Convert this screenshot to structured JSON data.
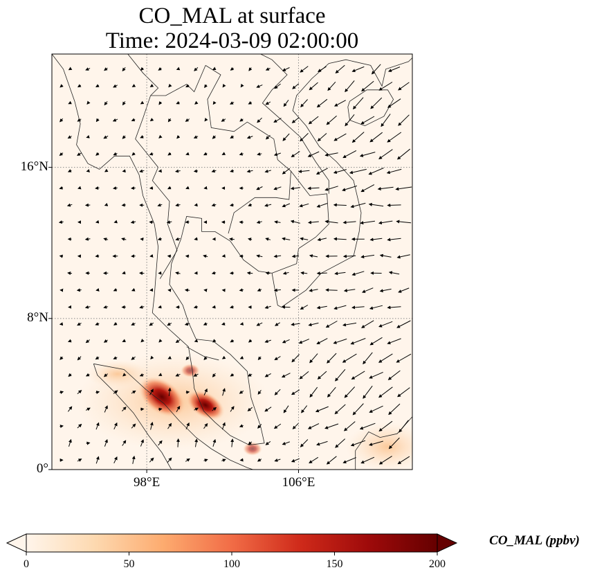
{
  "title": {
    "line1": "CO_MAL at surface",
    "line2": "Time: 2024-03-09 02:00:00"
  },
  "map": {
    "lat_range": [
      0,
      22
    ],
    "lon_range": [
      93,
      112
    ],
    "lat_ticks": [
      {
        "value": 16,
        "label": "16°N"
      },
      {
        "value": 8,
        "label": "8°N"
      },
      {
        "value": 0,
        "label": "0°"
      }
    ],
    "lon_ticks": [
      {
        "value": 98,
        "label": "98°E"
      },
      {
        "value": 106,
        "label": "106°E"
      }
    ],
    "gridlines": true,
    "vectors": "wind-arrows",
    "colors": {
      "background": "#fff5eb",
      "coast": "#222222",
      "grid": "#888888"
    }
  },
  "colorbar": {
    "label": "CO_MAL (ppbv)",
    "range": [
      0,
      200
    ],
    "extend": "both",
    "colormap": "Oranges-Reds",
    "ticks": [
      {
        "value": 0,
        "label": "0"
      },
      {
        "value": 50,
        "label": "50"
      },
      {
        "value": 100,
        "label": "100"
      },
      {
        "value": 150,
        "label": "150"
      },
      {
        "value": 200,
        "label": "200"
      }
    ],
    "stops": [
      "#fff5eb",
      "#fdd9b0",
      "#fdab6f",
      "#f16c46",
      "#cf2a1a",
      "#9e0a0a",
      "#650000"
    ]
  }
}
